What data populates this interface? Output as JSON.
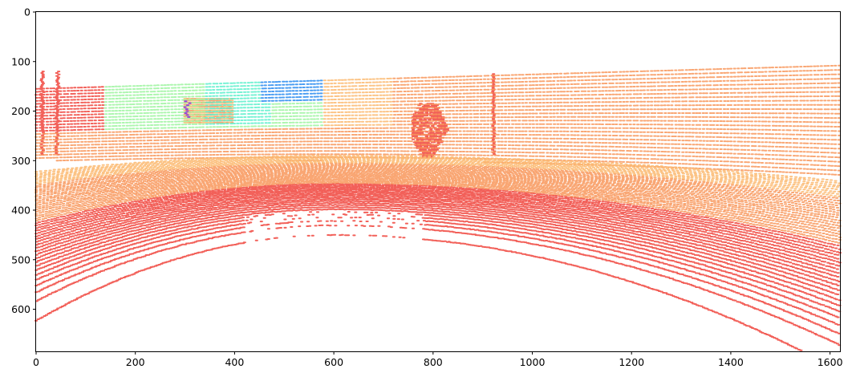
{
  "chart_data": {
    "type": "scatter",
    "title": "",
    "xlabel": "",
    "ylabel": "",
    "xlim": [
      0,
      1620
    ],
    "ylim": [
      685,
      0
    ],
    "y_axis_inverted": true,
    "grid": false,
    "legend": "none",
    "colormap": "rainbow (point color encodes depth)",
    "x_ticks": [
      0,
      200,
      400,
      600,
      800,
      1000,
      1200,
      1400,
      1600
    ],
    "y_ticks": [
      0,
      100,
      200,
      300,
      400,
      500,
      600
    ],
    "colors": {
      "near_red": "#f0443c",
      "mid_orange": "#f8965a",
      "far_peach": "#fbb86e",
      "light_green": "#9ef4a0",
      "cyan": "#5ef0cc",
      "blue": "#2a8cf0",
      "violet": "#8a2be2"
    },
    "regions": {
      "ground_arc_top_y_at_center": 450,
      "ground_arc_x_center": 600,
      "horizon_y_left": 150,
      "horizon_y_right": 108,
      "pedestrian_x": [
        760,
        840
      ],
      "pedestrian_y": [
        185,
        295
      ],
      "pole_x": 920,
      "vehicle_x": [
        300,
        400
      ],
      "vehicle_y": [
        175,
        225
      ]
    }
  }
}
